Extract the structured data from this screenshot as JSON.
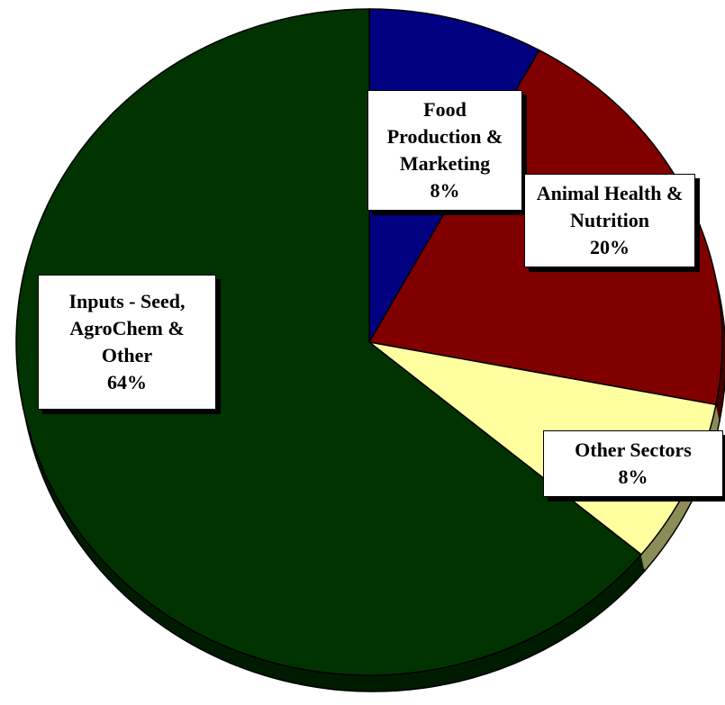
{
  "chart_data": {
    "type": "pie",
    "categories": [
      "Food Production & Marketing",
      "Animal Health & Nutrition",
      "Other Sectors",
      "Inputs - Seed, AgroChem & Other"
    ],
    "values": [
      8,
      20,
      8,
      64
    ],
    "value_labels": [
      "8%",
      "20%",
      "8%",
      "64%"
    ],
    "colors": [
      "#000080",
      "#800000",
      "#ffffa0",
      "#003300"
    ]
  }
}
